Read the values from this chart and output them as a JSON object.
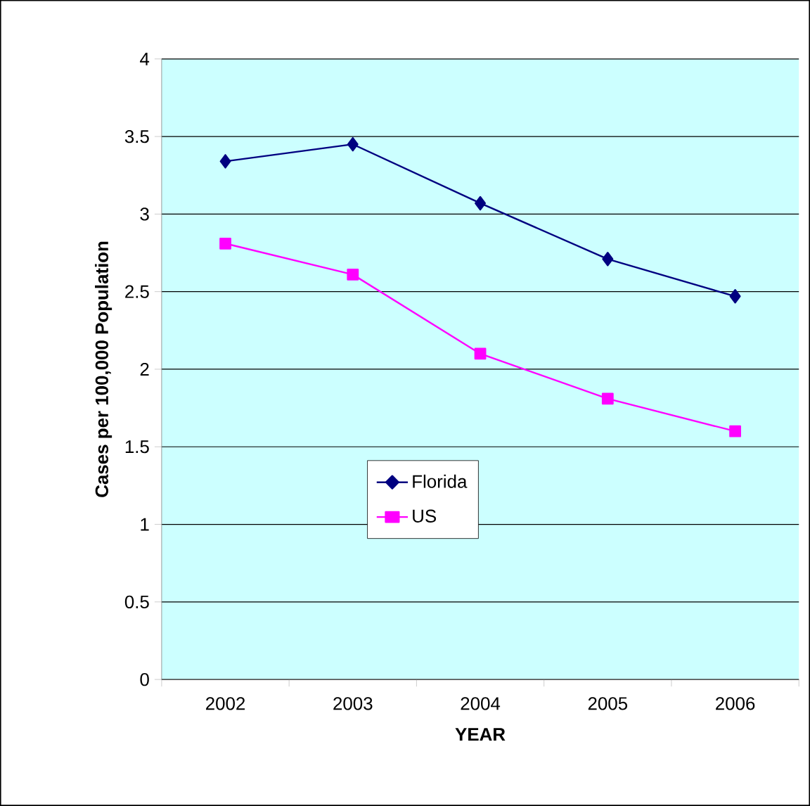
{
  "chart_data": {
    "type": "line",
    "xlabel": "YEAR",
    "ylabel": "Cases per 100,000 Population",
    "categories": [
      "2002",
      "2003",
      "2004",
      "2005",
      "2006"
    ],
    "series": [
      {
        "name": "Florida",
        "color": "#000080",
        "marker": "diamond",
        "values": [
          3.34,
          3.45,
          3.07,
          2.71,
          2.47
        ]
      },
      {
        "name": "US",
        "color": "#ff00ff",
        "marker": "square",
        "values": [
          2.81,
          2.61,
          2.1,
          1.81,
          1.6
        ]
      }
    ],
    "ylim": [
      0,
      4
    ],
    "yticks": [
      0,
      0.5,
      1,
      1.5,
      2,
      2.5,
      3,
      3.5,
      4
    ],
    "grid": "y",
    "legend": "center",
    "line_style": "solid"
  }
}
